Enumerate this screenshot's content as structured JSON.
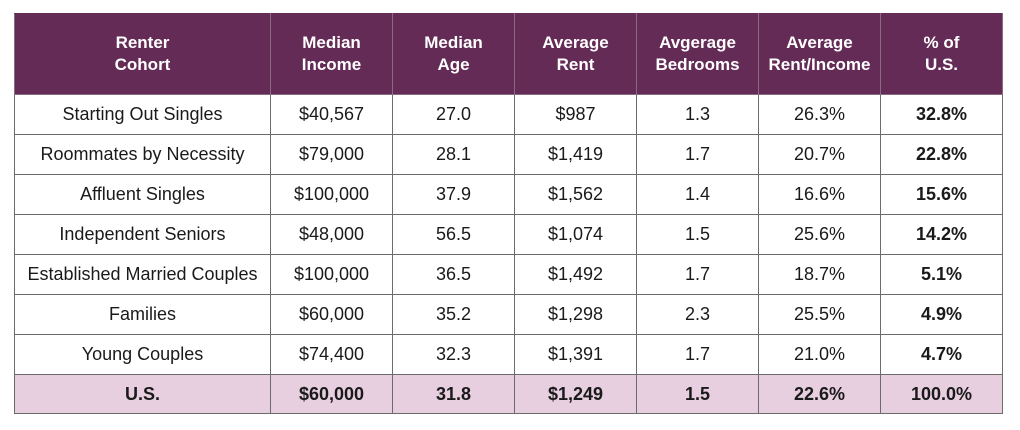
{
  "table": {
    "headers": [
      [
        "Renter",
        "Cohort"
      ],
      [
        "Median",
        "Income"
      ],
      [
        "Median",
        "Age"
      ],
      [
        "Average",
        "Rent"
      ],
      [
        "Avgerage",
        "Bedrooms"
      ],
      [
        "Average",
        "Rent/Income"
      ],
      [
        "% of",
        "U.S."
      ]
    ],
    "rows": [
      [
        "Starting Out Singles",
        "$40,567",
        "27.0",
        "$987",
        "1.3",
        "26.3%",
        "32.8%"
      ],
      [
        "Roommates by Necessity",
        "$79,000",
        "28.1",
        "$1,419",
        "1.7",
        "20.7%",
        "22.8%"
      ],
      [
        "Affluent Singles",
        "$100,000",
        "37.9",
        "$1,562",
        "1.4",
        "16.6%",
        "15.6%"
      ],
      [
        "Independent Seniors",
        "$48,000",
        "56.5",
        "$1,074",
        "1.5",
        "25.6%",
        "14.2%"
      ],
      [
        "Established Married Couples",
        "$100,000",
        "36.5",
        "$1,492",
        "1.7",
        "18.7%",
        "5.1%"
      ],
      [
        "Families",
        "$60,000",
        "35.2",
        "$1,298",
        "2.3",
        "25.5%",
        "4.9%"
      ],
      [
        "Young Couples",
        "$74,400",
        "32.3",
        "$1,391",
        "1.7",
        "21.0%",
        "4.7%"
      ]
    ],
    "total": [
      "U.S.",
      "$60,000",
      "31.8",
      "$1,249",
      "1.5",
      "22.6%",
      "100.0%"
    ]
  },
  "colors": {
    "header_bg": "#632b55",
    "total_bg": "#e7cfe0"
  }
}
